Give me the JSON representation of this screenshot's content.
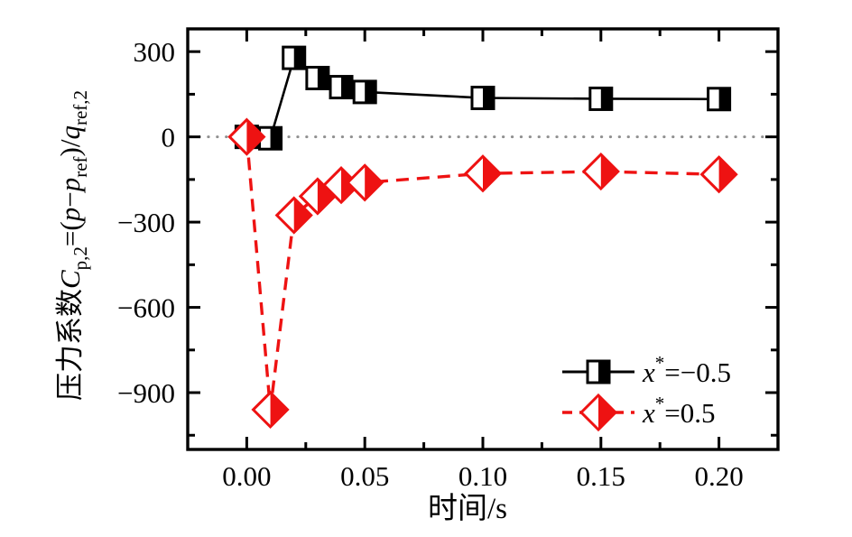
{
  "figure": {
    "background": "#ffffff",
    "axis_color": "#000000",
    "zero_line_color": "#8f8f8f",
    "accent_red": "#ee1212"
  },
  "axes": {
    "xlabel": "时间/s",
    "ylabel_plain": "压力系数C p,2=(p−p ref)/q ref,2",
    "ylabel_parts": [
      {
        "t": "压力系数"
      },
      {
        "t": "C",
        "s": "i"
      },
      {
        "t": "p,2",
        "s": "sub"
      },
      {
        "t": "=("
      },
      {
        "t": "p",
        "s": "i"
      },
      {
        "t": "−"
      },
      {
        "t": "p",
        "s": "i"
      },
      {
        "t": "ref",
        "s": "sub"
      },
      {
        "t": ")/"
      },
      {
        "t": "q",
        "s": "i"
      },
      {
        "t": "ref,2",
        "s": "sub"
      }
    ],
    "xtick_labels": [
      "0.00",
      "0.05",
      "0.10",
      "0.15",
      "0.20"
    ],
    "ytick_labels": [
      "300",
      "0",
      "−300",
      "−600",
      "−900"
    ]
  },
  "legend": {
    "position": "lower right",
    "entries": [
      {
        "label_plain": "x*=−0.5",
        "label_parts": [
          {
            "t": "x",
            "s": "i"
          },
          {
            "t": "*",
            "s": "sup"
          },
          {
            "t": "=−0.5"
          }
        ],
        "color": "#000000",
        "linestyle": "solid",
        "marker": "square-half-filled-right"
      },
      {
        "label_plain": "x*=0.5",
        "label_parts": [
          {
            "t": "x",
            "s": "i"
          },
          {
            "t": "*",
            "s": "sup"
          },
          {
            "t": "=0.5"
          }
        ],
        "color": "#ee1212",
        "linestyle": "dashed",
        "marker": "diamond-half-filled-right"
      }
    ]
  },
  "chart_data": {
    "type": "line",
    "title": "",
    "xlabel": "时间/s",
    "ylabel": "压力系数Cp,2=(p−pref)/qref,2",
    "xlim": [
      -0.025,
      0.225
    ],
    "ylim": [
      -1100,
      380
    ],
    "xticks": [
      0.0,
      0.05,
      0.1,
      0.15,
      0.2
    ],
    "yticks": [
      300,
      0,
      -300,
      -600,
      -900
    ],
    "minor_xticks": [
      0.025,
      0.075,
      0.125,
      0.175
    ],
    "minor_yticks": [
      150,
      -150,
      -450,
      -750,
      -1050
    ],
    "grid": false,
    "zero_reference_line": 0,
    "legend_position": "lower right",
    "series": [
      {
        "name": "x*=−0.5",
        "color": "#000000",
        "linestyle": "solid",
        "marker": "square-half-filled-right",
        "x": [
          0.0,
          0.01,
          0.02,
          0.03,
          0.04,
          0.05,
          0.1,
          0.15,
          0.2
        ],
        "y": [
          0,
          -5,
          278,
          207,
          175,
          158,
          137,
          134,
          133
        ]
      },
      {
        "name": "x*=0.5",
        "color": "#ee1212",
        "linestyle": "dashed",
        "marker": "diamond-half-filled-right",
        "x": [
          0.0,
          0.01,
          0.02,
          0.03,
          0.04,
          0.05,
          0.1,
          0.15,
          0.2
        ],
        "y": [
          0,
          -960,
          -276,
          -209,
          -170,
          -161,
          -129,
          -122,
          -132
        ]
      }
    ]
  }
}
